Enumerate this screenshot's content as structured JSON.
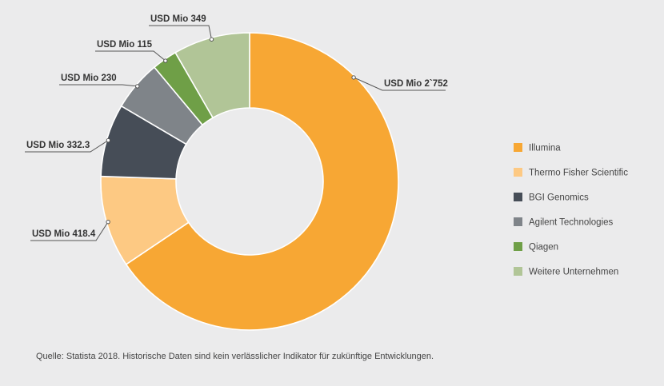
{
  "chart_data": {
    "type": "pie",
    "donut": true,
    "unit": "USD Mio",
    "series": [
      {
        "name": "Illumina",
        "value": 2752,
        "label": "USD Mio 2`752",
        "color": "#f7a734"
      },
      {
        "name": "Thermo Fisher Scientific",
        "value": 418.4,
        "label": "USD Mio 418.4",
        "color": "#fdc983"
      },
      {
        "name": "BGI Genomics",
        "value": 332.3,
        "label": "USD Mio 332.3",
        "color": "#464d57"
      },
      {
        "name": "Agilent Technologies",
        "value": 230,
        "label": "USD Mio 230",
        "color": "#7f8489"
      },
      {
        "name": "Qiagen",
        "value": 115,
        "label": "USD Mio 115",
        "color": "#6f9f47"
      },
      {
        "name": "Weitere Unternehmen",
        "value": 349,
        "label": "USD Mio 349",
        "color": "#b1c597"
      }
    ],
    "legend_position": "right",
    "start_angle_deg": 0,
    "direction": "clockwise"
  },
  "source": "Quelle: Statista 2018. Historische Daten sind kein verlässlicher Indikator für zukünftige Entwicklungen."
}
